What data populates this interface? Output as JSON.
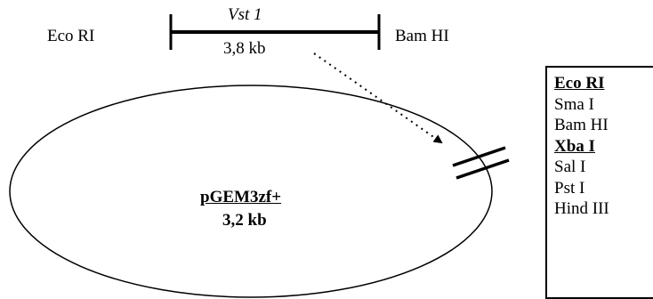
{
  "insert": {
    "name": "Vst 1",
    "size": "3,8 kb",
    "left_site": "Eco RI",
    "right_site": "Bam HI"
  },
  "plasmid": {
    "name": "pGEM3zf+",
    "size": "3,2 kb"
  },
  "mcs": {
    "sites": [
      {
        "name": "Eco RI",
        "highlight": true
      },
      {
        "name": "Sma I",
        "highlight": false
      },
      {
        "name": "Bam HI",
        "highlight": false
      },
      {
        "name": "Xba I",
        "highlight": true
      },
      {
        "name": "Sal I",
        "highlight": false
      },
      {
        "name": "Pst I",
        "highlight": false
      },
      {
        "name": "Hind III",
        "highlight": false
      }
    ]
  }
}
